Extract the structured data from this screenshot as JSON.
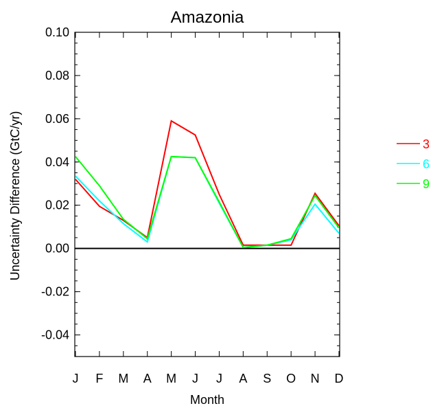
{
  "chart_data": {
    "type": "line",
    "title": "Amazonia",
    "xlabel": "Month",
    "ylabel": "Uncertainty Difference (GtC/yr)",
    "categories": [
      "J",
      "F",
      "M",
      "A",
      "M",
      "J",
      "J",
      "A",
      "S",
      "O",
      "N",
      "D"
    ],
    "ylim": [
      -0.05,
      0.1
    ],
    "yticks": [
      "0.10",
      "0.08",
      "0.06",
      "0.04",
      "0.02",
      "0.00",
      "-0.02",
      "-0.04"
    ],
    "ytick_values": [
      0.1,
      0.08,
      0.06,
      0.04,
      0.02,
      0.0,
      -0.02,
      -0.04
    ],
    "zero_line": true,
    "grid": false,
    "legend_position": "right",
    "series": [
      {
        "name": "3",
        "color": "#ff0000",
        "values": [
          0.032,
          0.0195,
          0.013,
          0.005,
          0.059,
          0.0525,
          0.025,
          0.0015,
          0.0015,
          0.0015,
          0.0255,
          0.0105
        ]
      },
      {
        "name": "6",
        "color": "#00ffff",
        "values": [
          0.0335,
          0.022,
          0.0115,
          0.003,
          0.0425,
          0.042,
          0.021,
          0.0005,
          0.0015,
          0.004,
          0.0205,
          0.007
        ]
      },
      {
        "name": "9",
        "color": "#00ff00",
        "values": [
          0.0425,
          0.029,
          0.0135,
          0.0045,
          0.0425,
          0.042,
          0.0215,
          0.0005,
          0.0015,
          0.0045,
          0.0245,
          0.0095
        ]
      }
    ]
  }
}
